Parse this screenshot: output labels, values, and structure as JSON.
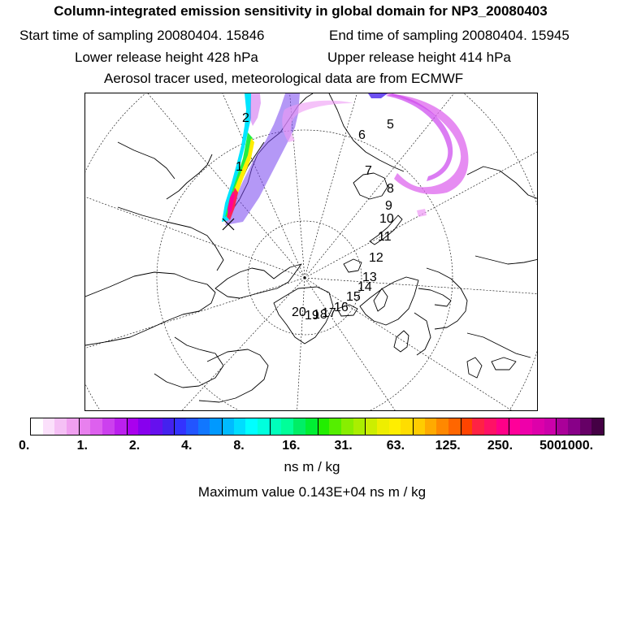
{
  "header": {
    "title": "Column-integrated emission sensitivity in global domain for NP3_20080403",
    "start_time": "Start time of sampling 20080404. 15846",
    "end_time": "End time of sampling 20080404. 15945",
    "lower_height": "Lower release height  428 hPa",
    "upper_height": "Upper release height  414 hPa",
    "info": "Aerosol tracer used, meteorological data are from ECMWF"
  },
  "map": {
    "trajectory_labels": [
      "1",
      "2",
      "5",
      "6",
      "7",
      "8",
      "9",
      "10",
      "11",
      "12",
      "13",
      "14",
      "15",
      "16",
      "17",
      "18",
      "19",
      "20"
    ]
  },
  "colorbar": {
    "colors": [
      "#ffffff",
      "#fbe0fb",
      "#f5c0f5",
      "#f0a0f0",
      "#e880ee",
      "#dd60ee",
      "#cc40ee",
      "#bb20ee",
      "#aa00ee",
      "#8800ee",
      "#6610ee",
      "#4422ee",
      "#3333ff",
      "#2255ff",
      "#1177ff",
      "#0099ff",
      "#00bbff",
      "#00ddff",
      "#00ffff",
      "#00ffdd",
      "#00ffbb",
      "#00ff99",
      "#00ee66",
      "#00ee33",
      "#22ee00",
      "#55ee00",
      "#88ee00",
      "#aaee00",
      "#ccee00",
      "#eeee00",
      "#ffee00",
      "#ffdd00",
      "#ffcc00",
      "#ffaa00",
      "#ff8800",
      "#ff6600",
      "#ff4400",
      "#ff2244",
      "#ff1166",
      "#ff0088",
      "#ff0099",
      "#ee00aa",
      "#dd00aa",
      "#cc00aa",
      "#aa0099",
      "#880088",
      "#660066",
      "#440044"
    ],
    "tick_labels": [
      "0.",
      "1.",
      "2.",
      "4.",
      "8.",
      "16.",
      "31.",
      "63.",
      "125.",
      "250.",
      "500.",
      "1000."
    ],
    "unit": "ns m / kg"
  },
  "max_value": "Maximum value  0.143E+04 ns m / kg"
}
